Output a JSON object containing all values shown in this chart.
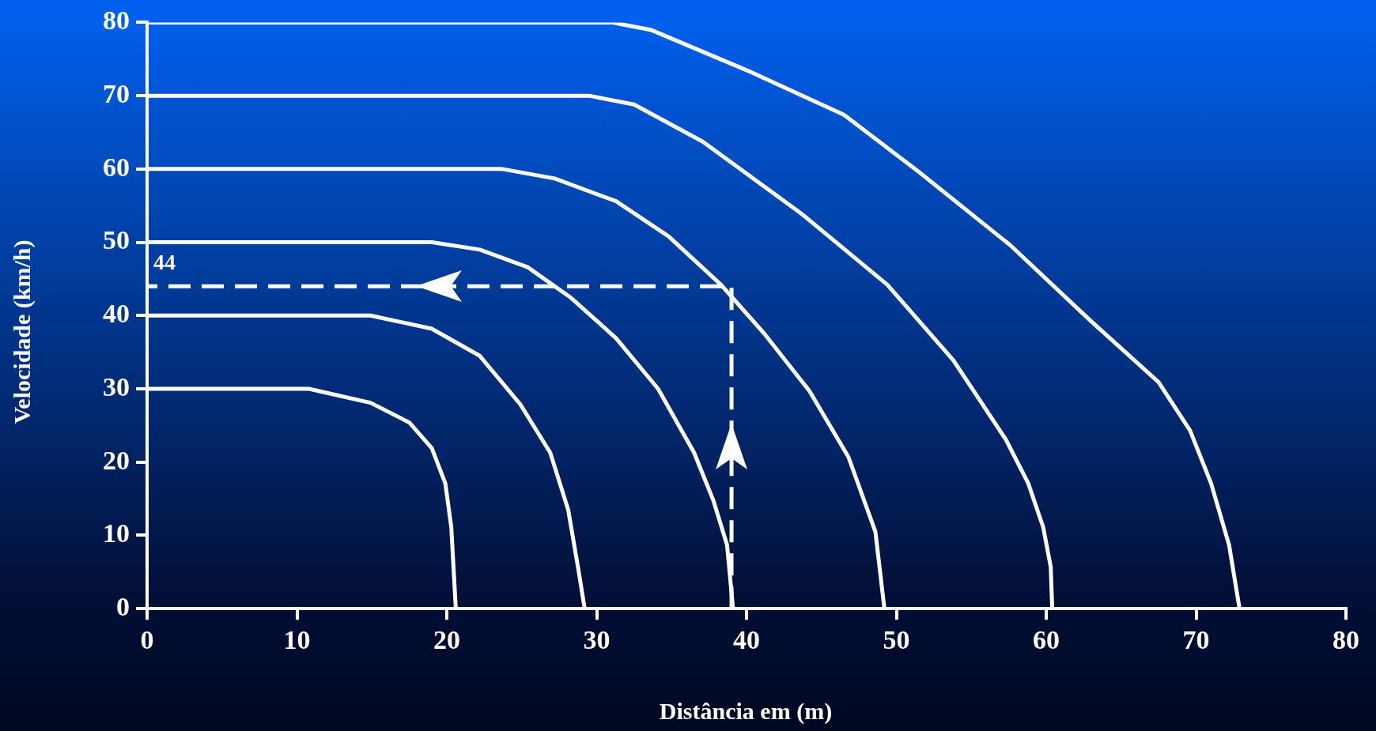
{
  "chart_data": {
    "type": "line",
    "xlabel": "Distância em (m)",
    "ylabel": "Velocidade (km/h)",
    "xlim": [
      0,
      80
    ],
    "ylim": [
      0,
      80
    ],
    "xticks": [
      0,
      10,
      20,
      30,
      40,
      50,
      60,
      70,
      80
    ],
    "yticks": [
      0,
      10,
      20,
      30,
      40,
      50,
      60,
      70,
      80
    ],
    "grid": false,
    "legend": false,
    "marker": "none",
    "line_style": "solid",
    "annotations": [
      {
        "text": "44",
        "x": 0,
        "y": 44
      }
    ],
    "series": [
      {
        "color": "#ffffff",
        "x": [
          0,
          10.8,
          14.9,
          17.5,
          19.0,
          19.9,
          20.3,
          20.6
        ],
        "values": [
          30,
          30,
          28.1,
          25.4,
          21.9,
          17.1,
          11.1,
          0
        ]
      },
      {
        "color": "#ffffff",
        "x": [
          0,
          14.9,
          19.0,
          22.2,
          24.9,
          26.9,
          28.1,
          28.8,
          29.2
        ],
        "values": [
          40,
          40,
          38.2,
          34.5,
          27.9,
          21.3,
          13.5,
          5.1,
          0
        ]
      },
      {
        "color": "#ffffff",
        "x": [
          0,
          19.0,
          22.2,
          25.4,
          28.3,
          31.3,
          34.1,
          36.5,
          37.8,
          38.7,
          39.1
        ],
        "values": [
          50,
          50,
          49.0,
          46.6,
          42.4,
          36.9,
          30.0,
          21.3,
          14.7,
          8.7,
          0
        ]
      },
      {
        "color": "#ffffff",
        "x": [
          0,
          23.7,
          27.2,
          31.3,
          34.8,
          38.3,
          41.2,
          44.2,
          46.8,
          48.6,
          49.2
        ],
        "values": [
          60,
          60,
          58.7,
          55.6,
          50.8,
          44.2,
          37.5,
          29.7,
          20.7,
          10.5,
          0
        ]
      },
      {
        "color": "#ffffff",
        "x": [
          0,
          29.5,
          32.5,
          37.1,
          43.6,
          49.4,
          53.8,
          57.3,
          58.8,
          59.8,
          60.3,
          60.4
        ],
        "values": [
          70,
          70,
          68.8,
          63.7,
          54.0,
          44.2,
          33.9,
          23.1,
          17.1,
          11.1,
          5.7,
          0
        ]
      },
      {
        "color": "#ffffff",
        "x": [
          0,
          31.0,
          33.6,
          40.1,
          46.5,
          51.5,
          57.6,
          62.9,
          67.5,
          69.6,
          71.0,
          72.2,
          72.9
        ],
        "values": [
          80,
          80,
          79.0,
          73.4,
          67.4,
          59.6,
          49.6,
          39.4,
          30.9,
          24.3,
          17.1,
          8.7,
          0
        ]
      },
      {
        "color": "#ffffff",
        "line_style": "dashed",
        "x": [
          39,
          39,
          0
        ],
        "values": [
          0,
          44,
          44
        ]
      }
    ]
  }
}
